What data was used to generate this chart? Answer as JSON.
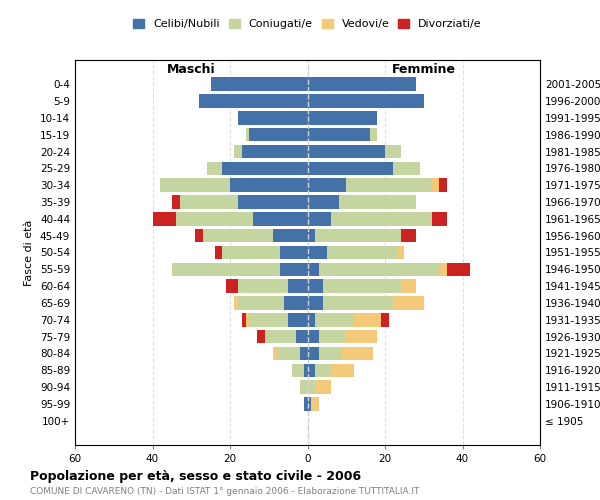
{
  "age_groups": [
    "100+",
    "95-99",
    "90-94",
    "85-89",
    "80-84",
    "75-79",
    "70-74",
    "65-69",
    "60-64",
    "55-59",
    "50-54",
    "45-49",
    "40-44",
    "35-39",
    "30-34",
    "25-29",
    "20-24",
    "15-19",
    "10-14",
    "5-9",
    "0-4"
  ],
  "birth_years": [
    "≤ 1905",
    "1906-1910",
    "1911-1915",
    "1916-1920",
    "1921-1925",
    "1926-1930",
    "1931-1935",
    "1936-1940",
    "1941-1945",
    "1946-1950",
    "1951-1955",
    "1956-1960",
    "1961-1965",
    "1966-1970",
    "1971-1975",
    "1976-1980",
    "1981-1985",
    "1986-1990",
    "1991-1995",
    "1996-2000",
    "2001-2005"
  ],
  "colors": {
    "celibi": "#4472a8",
    "coniugati": "#c5d5a0",
    "vedovi": "#f5c97a",
    "divorziati": "#cc2222"
  },
  "maschi": {
    "celibi": [
      0,
      1,
      0,
      1,
      2,
      3,
      5,
      6,
      5,
      7,
      7,
      9,
      14,
      18,
      20,
      22,
      17,
      15,
      18,
      28,
      25
    ],
    "coniugati": [
      0,
      0,
      2,
      3,
      6,
      8,
      10,
      12,
      13,
      28,
      15,
      18,
      20,
      15,
      18,
      4,
      2,
      1,
      0,
      0,
      0
    ],
    "vedovi": [
      0,
      0,
      0,
      0,
      1,
      0,
      1,
      1,
      0,
      0,
      0,
      0,
      0,
      0,
      0,
      0,
      0,
      0,
      0,
      0,
      0
    ],
    "divorziati": [
      0,
      0,
      0,
      0,
      0,
      2,
      1,
      0,
      3,
      0,
      2,
      2,
      6,
      2,
      0,
      0,
      0,
      0,
      0,
      0,
      0
    ]
  },
  "femmine": {
    "celibi": [
      0,
      1,
      0,
      2,
      3,
      3,
      2,
      4,
      4,
      3,
      5,
      2,
      6,
      8,
      10,
      22,
      20,
      16,
      18,
      30,
      28
    ],
    "coniugati": [
      0,
      0,
      2,
      4,
      6,
      7,
      10,
      18,
      20,
      31,
      18,
      22,
      26,
      20,
      22,
      7,
      4,
      2,
      0,
      0,
      0
    ],
    "vedovi": [
      0,
      2,
      4,
      6,
      8,
      8,
      7,
      8,
      4,
      2,
      2,
      0,
      0,
      0,
      2,
      0,
      0,
      0,
      0,
      0,
      0
    ],
    "divorziati": [
      0,
      0,
      0,
      0,
      0,
      0,
      2,
      0,
      0,
      6,
      0,
      4,
      4,
      0,
      2,
      0,
      0,
      0,
      0,
      0,
      0
    ]
  },
  "title": "Popolazione per età, sesso e stato civile - 2006",
  "subtitle": "COMUNE DI CAVARENO (TN) - Dati ISTAT 1° gennaio 2006 - Elaborazione TUTTITALIA.IT",
  "xlabel_left": "Maschi",
  "xlabel_right": "Femmine",
  "ylabel_left": "Fasce di età",
  "xlim": 60,
  "legend_labels": [
    "Celibi/Nubili",
    "Coniugati/e",
    "Vedovi/e",
    "Divorziati/e"
  ]
}
